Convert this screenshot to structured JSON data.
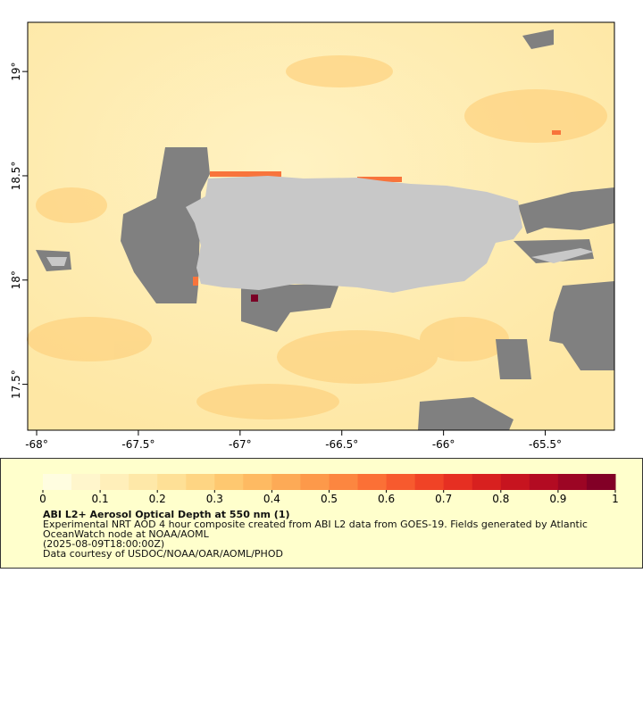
{
  "map": {
    "lon_range": [
      -68.044,
      -65.16
    ],
    "lat_range": [
      17.28,
      19.236
    ],
    "lon_ticks": [
      {
        "value": -68,
        "label": "-68°"
      },
      {
        "value": -67.5,
        "label": "-67.5°"
      },
      {
        "value": -67,
        "label": "-67°"
      },
      {
        "value": -66.5,
        "label": "-66.5°"
      },
      {
        "value": -66,
        "label": "-66°"
      },
      {
        "value": -65.5,
        "label": "-65.5°"
      }
    ],
    "lat_ticks": [
      {
        "value": 19,
        "label": "19°"
      },
      {
        "value": 18.5,
        "label": "18.5°"
      },
      {
        "value": 18,
        "label": "18°"
      },
      {
        "value": 17.5,
        "label": "17.5°"
      }
    ]
  },
  "colorbar": {
    "range": [
      0,
      1
    ],
    "ticks": [
      0,
      0.1,
      0.2,
      0.3,
      0.4,
      0.5,
      0.6,
      0.7,
      0.8,
      0.9,
      1
    ],
    "colors": [
      "#fffde0",
      "#fff6cc",
      "#ffefba",
      "#fee8a8",
      "#fee096",
      "#fed583",
      "#fec870",
      "#feba62",
      "#fdaa56",
      "#fd994a",
      "#fc8640",
      "#fb7036",
      "#f75a2e",
      "#f04326",
      "#e62f22",
      "#d8201f",
      "#c7141f",
      "#b30b22",
      "#9c0524",
      "#820026"
    ]
  },
  "legend": {
    "title": "ABI L2+ Aerosol Optical Depth at 550 nm (1)",
    "description": "Experimental NRT AOD 4 hour composite created from ABI L2 data from GOES-19. Fields generated by Atlantic OceanWatch node at NOAA/AOML",
    "time": "(2025-08-09T18:00:00Z)",
    "credit": "Data courtesy of USDOC/NOAA/OAR/AOML/PHOD"
  }
}
